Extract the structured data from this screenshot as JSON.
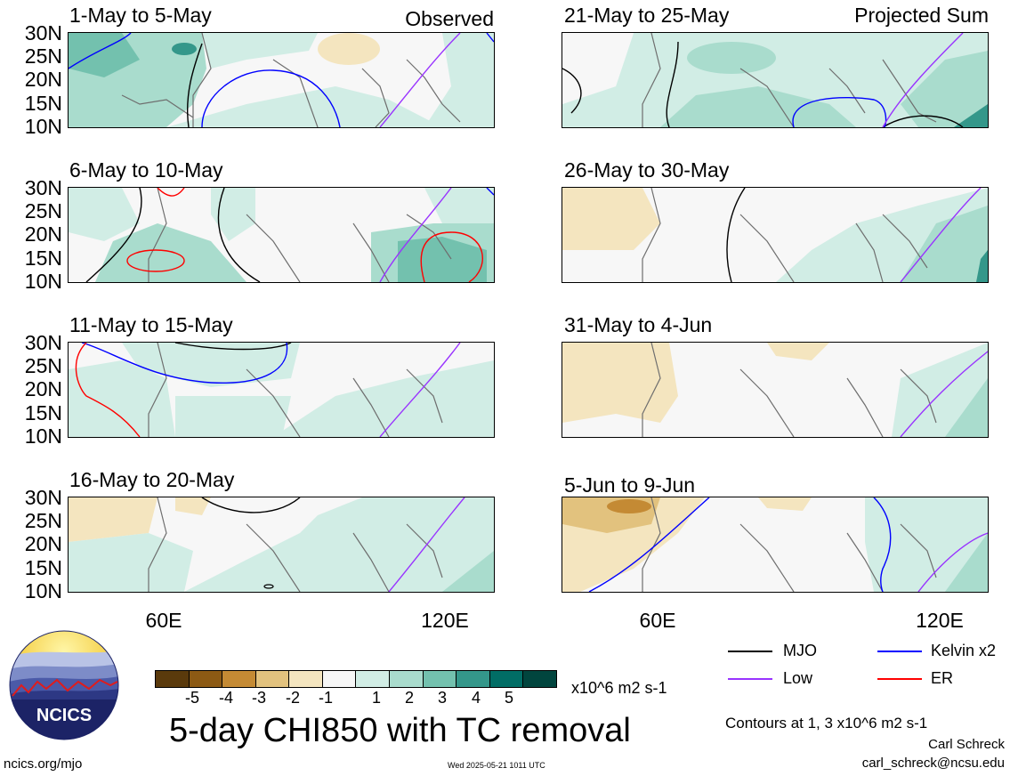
{
  "colors": {
    "neg5": "#5a3a0c",
    "neg4": "#8c5a14",
    "neg3": "#c48a34",
    "neg2": "#e2c27e",
    "neg1": "#f4e5bf",
    "zero": "#f7f7f7",
    "pos1": "#d1ede5",
    "pos2": "#a9dccd",
    "pos3": "#73c1ae",
    "pos4": "#34978a",
    "pos5": "#016d65",
    "pos6": "#01453e",
    "mjo": "#000000",
    "kelvin": "#0000ff",
    "low": "#9933ff",
    "er": "#ff0000",
    "coast": "#6e6e6e"
  },
  "columns": {
    "left": "Observed",
    "right": "Projected Sum"
  },
  "panels": [
    {
      "title": "1-May to 5-May"
    },
    {
      "title": "21-May to 25-May"
    },
    {
      "title": "6-May to 10-May"
    },
    {
      "title": "26-May to 30-May"
    },
    {
      "title": "11-May to 15-May"
    },
    {
      "title": "31-May to 4-Jun"
    },
    {
      "title": "16-May to 20-May"
    },
    {
      "title": "5-Jun to 9-Jun"
    }
  ],
  "yticks": [
    "30N",
    "25N",
    "20N",
    "15N",
    "10N"
  ],
  "xticks": [
    "60E",
    "120E"
  ],
  "colorbar": {
    "labels": [
      "-5",
      "-4",
      "-3",
      "-2",
      "-1",
      "1",
      "2",
      "3",
      "4",
      "5"
    ],
    "units": "x10^6 m2 s-1"
  },
  "legend": {
    "mjo": "MJO",
    "kelvin": "Kelvin x2",
    "low": "Low",
    "er": "ER"
  },
  "title": "5-day CHI850 with TC removal",
  "contours_note": "Contours at 1, 3 x10^6 m2 s-1",
  "author": "Carl Schreck",
  "email": "carl_schreck@ncsu.edu",
  "site": "ncics.org/mjo",
  "timestamp": "Wed 2025-05-21 1011 UTC",
  "logo_text": "NCICS"
}
